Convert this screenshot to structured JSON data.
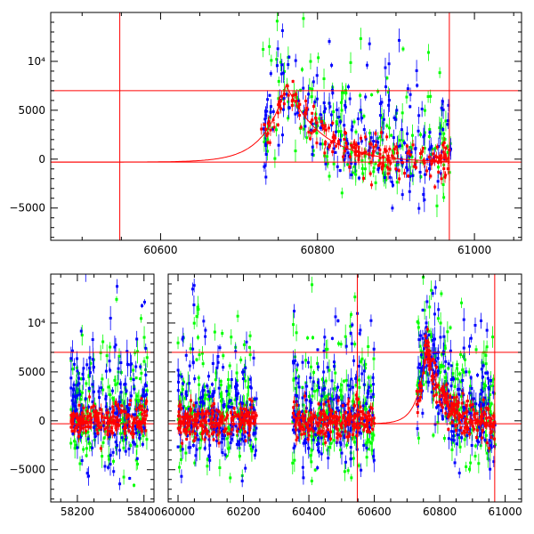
{
  "chart_data": [
    {
      "type": "scatter",
      "panel": "top",
      "title": "",
      "xlabel": "",
      "ylabel": "",
      "xlim": [
        60460,
        61060
      ],
      "ylim": [
        -8300,
        15000
      ],
      "xticks": [
        60600,
        60800,
        61000
      ],
      "xtick_labels": [
        "60600",
        "60800",
        "61000"
      ],
      "yticks": [
        -5000,
        0,
        5000,
        10000
      ],
      "ytick_labels": [
        "−5000",
        "0",
        "5000",
        "10⁴"
      ],
      "hlines": [
        7000,
        -300
      ],
      "vlines": [
        60548,
        60968
      ],
      "model_curve": {
        "baseline": -300,
        "peak_x": 60760,
        "peak_y": 7600,
        "rise_scale": 28,
        "decay_scale": 45
      },
      "series": [
        {
          "name": "green",
          "color": "#00ff00",
          "clusters": [
            [
              60730,
              60970
            ]
          ]
        },
        {
          "name": "blue",
          "color": "#0000ff",
          "clusters": [
            [
              60730,
              60970
            ]
          ]
        },
        {
          "name": "red",
          "color": "#ff0000",
          "clusters": [
            [
              60728,
              60968
            ]
          ]
        }
      ]
    },
    {
      "type": "scatter",
      "panel": "bottom",
      "title": "",
      "xlabel": "",
      "ylabel": "",
      "segments": [
        {
          "xlim": [
            58120,
            58430
          ],
          "xticks": [
            58200,
            58400
          ],
          "xtick_labels": [
            "58200",
            "58400"
          ]
        },
        {
          "xlim": [
            59970,
            61050
          ],
          "xticks": [
            60000,
            60200,
            60400,
            60600,
            60800,
            61000
          ],
          "xtick_labels": [
            "60000",
            "60200",
            "60400",
            "60600",
            "60800",
            "61000"
          ]
        }
      ],
      "ylim": [
        -8300,
        15000
      ],
      "yticks": [
        -5000,
        0,
        5000,
        10000
      ],
      "ytick_labels": [
        "−5000",
        "0",
        "5000",
        "10⁴"
      ],
      "hlines": [
        7000,
        -300
      ],
      "vlines": [
        60548,
        60968
      ],
      "model_curve": {
        "baseline": -300,
        "peak_x": 60760,
        "peak_y": 7600,
        "rise_scale": 28,
        "decay_scale": 45
      },
      "series": [
        {
          "name": "green",
          "color": "#00ff00",
          "clusters": [
            [
              58180,
              58410
            ],
            [
              60000,
              60240
            ],
            [
              60350,
              60600
            ],
            [
              60730,
              60970
            ]
          ]
        },
        {
          "name": "blue",
          "color": "#0000ff",
          "clusters": [
            [
              58180,
              58410
            ],
            [
              60000,
              60240
            ],
            [
              60350,
              60600
            ],
            [
              60730,
              60970
            ]
          ]
        },
        {
          "name": "red",
          "color": "#ff0000",
          "clusters": [
            [
              58180,
              58410
            ],
            [
              60000,
              60240
            ],
            [
              60350,
              60600
            ],
            [
              60728,
              60968
            ]
          ]
        }
      ]
    }
  ]
}
